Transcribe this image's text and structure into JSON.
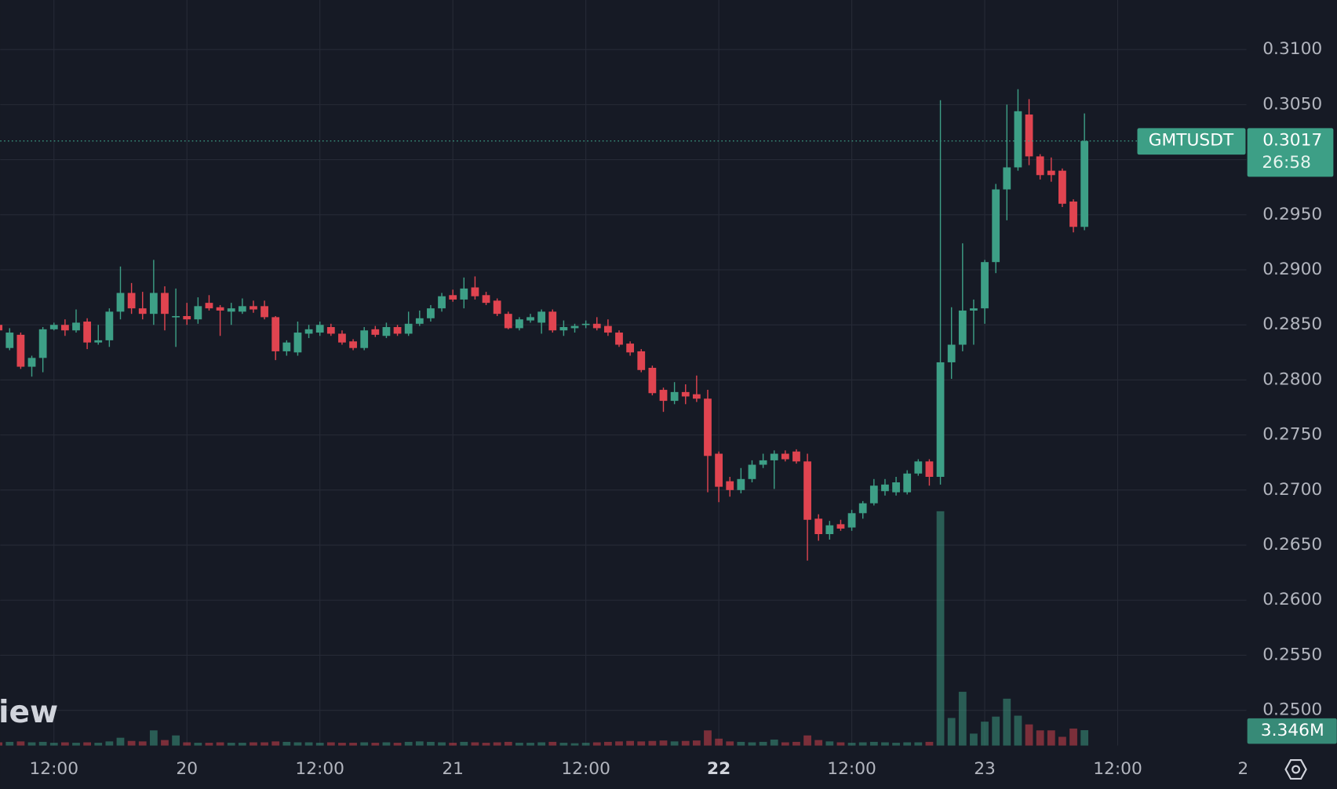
{
  "chart_data": {
    "type": "candlestick",
    "symbol": "GMTUSDT",
    "countdown": "26:58",
    "logo": "View",
    "volume_value_label": "3.346M",
    "up_color": "#3d9f86",
    "down_color": "#e04450",
    "x": [
      "19 07:00",
      "19 08:00",
      "19 09:00",
      "19 10:00",
      "19 11:00",
      "19 12:00",
      "19 13:00",
      "19 14:00",
      "19 15:00",
      "19 16:00",
      "19 17:00",
      "19 18:00",
      "19 19:00",
      "19 20:00",
      "19 21:00",
      "19 22:00",
      "19 23:00",
      "20 00:00",
      "20 01:00",
      "20 02:00",
      "20 03:00",
      "20 04:00",
      "20 05:00",
      "20 06:00",
      "20 07:00",
      "20 08:00",
      "20 09:00",
      "20 10:00",
      "20 11:00",
      "20 12:00",
      "20 13:00",
      "20 14:00",
      "20 15:00",
      "20 16:00",
      "20 17:00",
      "20 18:00",
      "20 19:00",
      "20 20:00",
      "20 21:00",
      "20 22:00",
      "20 23:00",
      "21 00:00",
      "21 01:00",
      "21 02:00",
      "21 03:00",
      "21 04:00",
      "21 05:00",
      "21 06:00",
      "21 07:00",
      "21 08:00",
      "21 09:00",
      "21 10:00",
      "21 11:00",
      "21 12:00",
      "21 13:00",
      "21 14:00",
      "21 15:00",
      "21 16:00",
      "21 17:00",
      "21 18:00",
      "21 19:00",
      "21 20:00",
      "21 21:00",
      "21 22:00",
      "21 23:00",
      "22 00:00",
      "22 01:00",
      "22 02:00",
      "22 03:00",
      "22 04:00",
      "22 05:00",
      "22 06:00",
      "22 07:00",
      "22 08:00",
      "22 09:00",
      "22 10:00",
      "22 11:00",
      "22 12:00",
      "22 13:00",
      "22 14:00",
      "22 15:00",
      "22 16:00",
      "22 17:00",
      "22 18:00",
      "22 19:00",
      "22 20:00",
      "22 21:00",
      "22 22:00",
      "22 23:00",
      "23 00:00",
      "23 01:00",
      "23 02:00",
      "23 03:00",
      "23 04:00",
      "23 05:00",
      "23 06:00",
      "23 07:00",
      "23 08:00",
      "23 09:00"
    ],
    "open": [
      0.285,
      0.2829,
      0.2841,
      0.2812,
      0.282,
      0.2846,
      0.285,
      0.2845,
      0.2853,
      0.2834,
      0.2836,
      0.2862,
      0.2879,
      0.2865,
      0.286,
      0.2879,
      0.2857,
      0.2858,
      0.2855,
      0.287,
      0.2866,
      0.2862,
      0.2862,
      0.2867,
      0.2867,
      0.2857,
      0.2826,
      0.2825,
      0.2842,
      0.2843,
      0.2848,
      0.2842,
      0.2835,
      0.2829,
      0.2846,
      0.284,
      0.2848,
      0.2842,
      0.2851,
      0.2856,
      0.2865,
      0.2877,
      0.2873,
      0.2884,
      0.2877,
      0.2872,
      0.286,
      0.2847,
      0.2854,
      0.2852,
      0.2862,
      0.2845,
      0.2847,
      0.285,
      0.2851,
      0.2849,
      0.2843,
      0.2833,
      0.2826,
      0.2811,
      0.2791,
      0.2781,
      0.2789,
      0.2787,
      0.2783,
      0.2733,
      0.2708,
      0.27,
      0.271,
      0.2723,
      0.2727,
      0.2733,
      0.2735,
      0.2726,
      0.2674,
      0.266,
      0.2669,
      0.2666,
      0.2679,
      0.2688,
      0.2699,
      0.2698,
      0.2698,
      0.2715,
      0.2726,
      0.2712,
      0.2816,
      0.2832,
      0.2863,
      0.2865,
      0.2907,
      0.2973,
      0.2993,
      0.3041,
      0.3003,
      0.299,
      0.299,
      0.2962,
      0.2939
    ],
    "high": [
      0.2855,
      0.2847,
      0.2843,
      0.2822,
      0.2848,
      0.2852,
      0.2855,
      0.2864,
      0.2856,
      0.285,
      0.2865,
      0.2903,
      0.2888,
      0.288,
      0.2909,
      0.2885,
      0.2883,
      0.287,
      0.2875,
      0.2877,
      0.2868,
      0.287,
      0.2874,
      0.2872,
      0.2872,
      0.2858,
      0.2836,
      0.2853,
      0.285,
      0.2853,
      0.2851,
      0.2845,
      0.2837,
      0.2848,
      0.2849,
      0.2852,
      0.285,
      0.2862,
      0.2863,
      0.2868,
      0.2879,
      0.2882,
      0.2893,
      0.2894,
      0.288,
      0.2874,
      0.2862,
      0.2857,
      0.286,
      0.2864,
      0.2864,
      0.2854,
      0.2851,
      0.2854,
      0.2857,
      0.2855,
      0.2845,
      0.2835,
      0.2828,
      0.2813,
      0.2793,
      0.2798,
      0.2796,
      0.2804,
      0.2791,
      0.2735,
      0.2712,
      0.272,
      0.2727,
      0.2733,
      0.2736,
      0.2736,
      0.2737,
      0.2733,
      0.2678,
      0.2672,
      0.2673,
      0.2682,
      0.269,
      0.271,
      0.271,
      0.2712,
      0.2718,
      0.2728,
      0.2728,
      0.3054,
      0.2866,
      0.2924,
      0.2873,
      0.2909,
      0.2978,
      0.305,
      0.3064,
      0.3055,
      0.3005,
      0.3002,
      0.2992,
      0.2964,
      0.3042
    ],
    "low": [
      0.284,
      0.2827,
      0.281,
      0.2803,
      0.2807,
      0.2845,
      0.284,
      0.2843,
      0.2828,
      0.2832,
      0.283,
      0.2855,
      0.286,
      0.2855,
      0.285,
      0.2845,
      0.283,
      0.285,
      0.2851,
      0.2863,
      0.284,
      0.285,
      0.286,
      0.2861,
      0.2855,
      0.2818,
      0.2822,
      0.2822,
      0.2838,
      0.284,
      0.284,
      0.2832,
      0.2827,
      0.2827,
      0.2839,
      0.2838,
      0.284,
      0.284,
      0.2849,
      0.2853,
      0.2862,
      0.2871,
      0.2865,
      0.2873,
      0.2868,
      0.2858,
      0.2846,
      0.2845,
      0.2852,
      0.2842,
      0.2843,
      0.284,
      0.2843,
      0.2847,
      0.2845,
      0.284,
      0.283,
      0.2822,
      0.2807,
      0.2786,
      0.2771,
      0.2778,
      0.2778,
      0.278,
      0.2698,
      0.2689,
      0.2694,
      0.2697,
      0.2707,
      0.272,
      0.2701,
      0.2726,
      0.2724,
      0.2636,
      0.2654,
      0.2655,
      0.2663,
      0.2663,
      0.2674,
      0.2686,
      0.2695,
      0.2695,
      0.2696,
      0.2713,
      0.2704,
      0.2705,
      0.2801,
      0.2826,
      0.2832,
      0.2851,
      0.2897,
      0.2945,
      0.299,
      0.2995,
      0.2982,
      0.298,
      0.2957,
      0.2934,
      0.2936
    ],
    "close": [
      0.2845,
      0.2843,
      0.2812,
      0.282,
      0.2846,
      0.285,
      0.2845,
      0.2852,
      0.2834,
      0.2836,
      0.2862,
      0.2879,
      0.2865,
      0.286,
      0.2879,
      0.286,
      0.2858,
      0.2855,
      0.2867,
      0.2865,
      0.2863,
      0.2865,
      0.2867,
      0.2864,
      0.2857,
      0.2826,
      0.2834,
      0.2843,
      0.2846,
      0.285,
      0.2842,
      0.2834,
      0.2829,
      0.2845,
      0.2841,
      0.2848,
      0.2842,
      0.2851,
      0.2856,
      0.2865,
      0.2876,
      0.2873,
      0.2883,
      0.2876,
      0.287,
      0.286,
      0.2847,
      0.2855,
      0.2857,
      0.2862,
      0.2845,
      0.2848,
      0.2849,
      0.2851,
      0.2847,
      0.2843,
      0.2832,
      0.2825,
      0.2809,
      0.2788,
      0.2781,
      0.2789,
      0.2785,
      0.2783,
      0.2731,
      0.2703,
      0.27,
      0.271,
      0.2723,
      0.2727,
      0.2733,
      0.2728,
      0.2726,
      0.2673,
      0.266,
      0.2668,
      0.2665,
      0.2679,
      0.2688,
      0.2704,
      0.2705,
      0.2707,
      0.2715,
      0.2726,
      0.2712,
      0.2816,
      0.2832,
      0.2863,
      0.2865,
      0.2907,
      0.2973,
      0.2993,
      0.3044,
      0.3003,
      0.2986,
      0.2986,
      0.296,
      0.2939,
      0.3017
    ],
    "volume": [
      700000,
      800000,
      900000,
      700000,
      800000,
      600000,
      700000,
      600000,
      700000,
      600000,
      900000,
      1700000,
      1000000,
      900000,
      3300000,
      1200000,
      2200000,
      700000,
      600000,
      600000,
      700000,
      600000,
      600000,
      700000,
      700000,
      900000,
      800000,
      700000,
      700000,
      600000,
      700000,
      600000,
      600000,
      700000,
      600000,
      700000,
      600000,
      800000,
      900000,
      800000,
      700000,
      600000,
      800000,
      700000,
      600000,
      700000,
      800000,
      600000,
      600000,
      700000,
      800000,
      600000,
      500000,
      600000,
      700000,
      800000,
      900000,
      1000000,
      900000,
      1000000,
      1100000,
      900000,
      1000000,
      1100000,
      3300000,
      1500000,
      900000,
      800000,
      700000,
      800000,
      1300000,
      700000,
      800000,
      2200000,
      1200000,
      900000,
      700000,
      600000,
      700000,
      800000,
      700000,
      600000,
      700000,
      700000,
      800000,
      51000000,
      6000000,
      11700000,
      2600000,
      5200000,
      6300000,
      10200000,
      6500000,
      4600000,
      3300000,
      3300000,
      1900000,
      3700000,
      3346000
    ],
    "xlim": [
      "19 07:09",
      "23 23:37"
    ],
    "xticks": [
      {
        "value": "19 12:00",
        "label": "12:00"
      },
      {
        "value": "20 00:00",
        "label": "20"
      },
      {
        "value": "20 12:00",
        "label": "12:00"
      },
      {
        "value": "21 00:00",
        "label": "21"
      },
      {
        "value": "21 12:00",
        "label": "12:00"
      },
      {
        "value": "22 00:00",
        "label": "22",
        "bold": true
      },
      {
        "value": "22 12:00",
        "label": "12:00"
      },
      {
        "value": "23 00:00",
        "label": "23"
      },
      {
        "value": "23 12:00",
        "label": "12:00"
      },
      {
        "value": "24 00:00",
        "label": "2"
      }
    ],
    "ylim": [
      0.2468,
      0.3145
    ],
    "yticks": [
      {
        "value": 0.25,
        "label": "0.2500"
      },
      {
        "value": 0.255,
        "label": "0.2550"
      },
      {
        "value": 0.26,
        "label": "0.2600"
      },
      {
        "value": 0.265,
        "label": "0.2650"
      },
      {
        "value": 0.27,
        "label": "0.2700"
      },
      {
        "value": 0.275,
        "label": "0.2750"
      },
      {
        "value": 0.28,
        "label": "0.2800"
      },
      {
        "value": 0.285,
        "label": "0.2850"
      },
      {
        "value": 0.29,
        "label": "0.2900"
      },
      {
        "value": 0.295,
        "label": "0.2950"
      },
      {
        "value": 0.3,
        "label": "0.3000"
      },
      {
        "value": 0.305,
        "label": "0.3050"
      },
      {
        "value": 0.31,
        "label": "0.3100"
      }
    ],
    "grid": true
  }
}
